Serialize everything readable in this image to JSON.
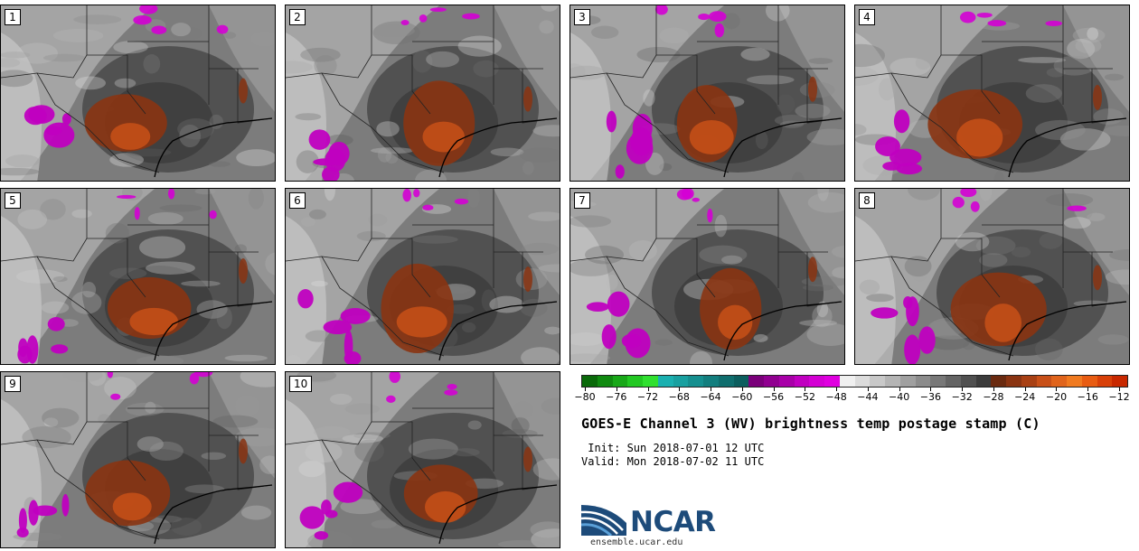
{
  "panels": [
    {
      "label": "1"
    },
    {
      "label": "2"
    },
    {
      "label": "3"
    },
    {
      "label": "4"
    },
    {
      "label": "5"
    },
    {
      "label": "6"
    },
    {
      "label": "7"
    },
    {
      "label": "8"
    },
    {
      "label": "9"
    },
    {
      "label": "10"
    }
  ],
  "colorbar": {
    "tick_labels": [
      "−80",
      "−76",
      "−72",
      "−68",
      "−64",
      "−60",
      "−56",
      "−52",
      "−48",
      "−44",
      "−40",
      "−36",
      "−32",
      "−28",
      "−24",
      "−20",
      "−16",
      "−12"
    ],
    "min": -80,
    "max": -12,
    "colors": [
      "#0a6a0a",
      "#108a10",
      "#18a818",
      "#22c822",
      "#30e030",
      "#1ab0b0",
      "#18a0a0",
      "#158f8f",
      "#127e7e",
      "#0f6e6e",
      "#0c5e5e",
      "#7a007a",
      "#900090",
      "#a800a8",
      "#c000c0",
      "#d400d4",
      "#e000e0",
      "#f0f0f0",
      "#dcdcdc",
      "#c8c8c8",
      "#b4b4b4",
      "#a0a0a0",
      "#8c8c8c",
      "#787878",
      "#646464",
      "#505050",
      "#3c3c3c",
      "#6a2a10",
      "#8a3412",
      "#a84014",
      "#c85018",
      "#e0641c",
      "#f07a20",
      "#e85c12",
      "#d84008",
      "#c82800"
    ]
  },
  "title": "GOES-E Channel 3 (WV) brightness temp postage stamp (C)",
  "init": " Init: Sun 2018-07-01 12 UTC",
  "valid": "Valid: Mon 2018-07-02 11 UTC",
  "logo": {
    "text": "NCAR",
    "colors": {
      "dark": "#1d4b7a",
      "light": "#5aa0d8"
    }
  },
  "site": "ensemble.ucar.edu"
}
